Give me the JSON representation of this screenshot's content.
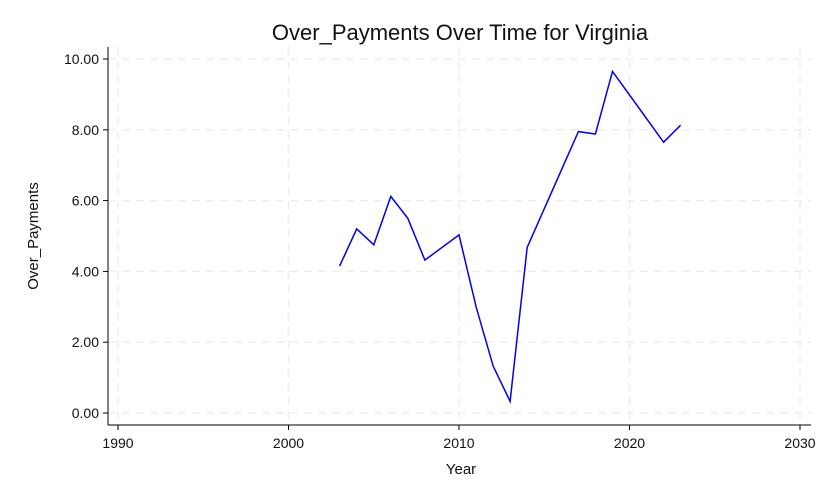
{
  "chart_data": {
    "type": "line",
    "title": "Over_Payments Over Time for Virginia",
    "xlabel": "Year",
    "ylabel": "Over_Payments",
    "xlim": [
      1990,
      2030
    ],
    "ylim": [
      0,
      10
    ],
    "xticks": [
      1990,
      2000,
      2010,
      2020,
      2030
    ],
    "xtick_labels": [
      "1990",
      "2000",
      "2010",
      "2020",
      "2030"
    ],
    "yticks": [
      0,
      2,
      4,
      6,
      8,
      10
    ],
    "ytick_labels": [
      "0.00",
      "2.00",
      "4.00",
      "6.00",
      "8.00",
      "10.00"
    ],
    "grid": true,
    "series": [
      {
        "color": "#0000ee",
        "x": [
          2003,
          2004,
          2005,
          2006,
          2007,
          2008,
          2010,
          2011,
          2012,
          2013,
          2014,
          2017,
          2018,
          2019,
          2022,
          2023
        ],
        "y": [
          4.15,
          5.2,
          4.75,
          6.12,
          5.5,
          4.32,
          5.03,
          3.0,
          1.33,
          0.33,
          4.68,
          7.95,
          7.88,
          9.65,
          7.65,
          8.13
        ]
      }
    ]
  }
}
